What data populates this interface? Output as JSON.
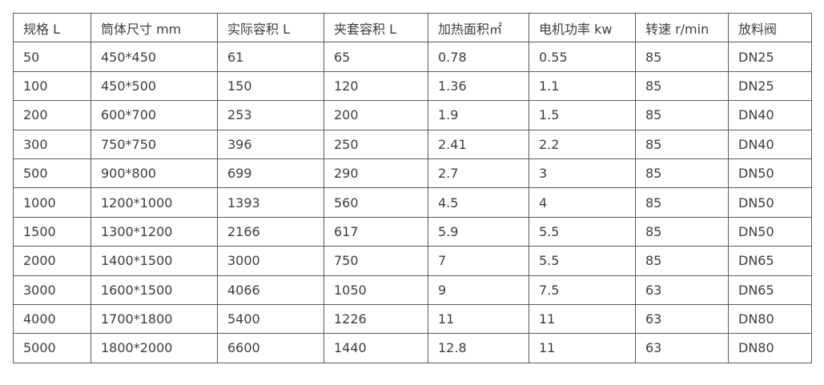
{
  "table": {
    "headers": [
      "规格 L",
      "筒体尺寸 mm",
      "实际容积 L",
      "夹套容积 L",
      "加热面积㎡",
      "电机功率 kw",
      "转速 r/min",
      "放料阀"
    ],
    "rows": [
      [
        "50",
        "450*450",
        "61",
        "65",
        "0.78",
        "0.55",
        "85",
        "DN25"
      ],
      [
        "100",
        "450*500",
        "150",
        "120",
        "1.36",
        "1.1",
        "85",
        "DN25"
      ],
      [
        "200",
        "600*700",
        "253",
        "200",
        "1.9",
        "1.5",
        "85",
        "DN40"
      ],
      [
        "300",
        "750*750",
        "396",
        "250",
        "2.41",
        "2.2",
        "85",
        "DN40"
      ],
      [
        "500",
        "900*800",
        "699",
        "290",
        "2.7",
        "3",
        "85",
        "DN50"
      ],
      [
        "1000",
        "1200*1000",
        "1393",
        "560",
        "4.5",
        "4",
        "85",
        "DN50"
      ],
      [
        "1500",
        "1300*1200",
        "2166",
        "617",
        "5.9",
        "5.5",
        "85",
        "DN50"
      ],
      [
        "2000",
        "1400*1500",
        "3000",
        "750",
        "7",
        "5.5",
        "85",
        "DN65"
      ],
      [
        "3000",
        "1600*1500",
        "4066",
        "1050",
        "9",
        "7.5",
        "63",
        "DN65"
      ],
      [
        "4000",
        "1700*1800",
        "5400",
        "1226",
        "11",
        "11",
        "63",
        "DN80"
      ],
      [
        "5000",
        "1800*2000",
        "6600",
        "1440",
        "12.8",
        "11",
        "63",
        "DN80"
      ]
    ]
  }
}
